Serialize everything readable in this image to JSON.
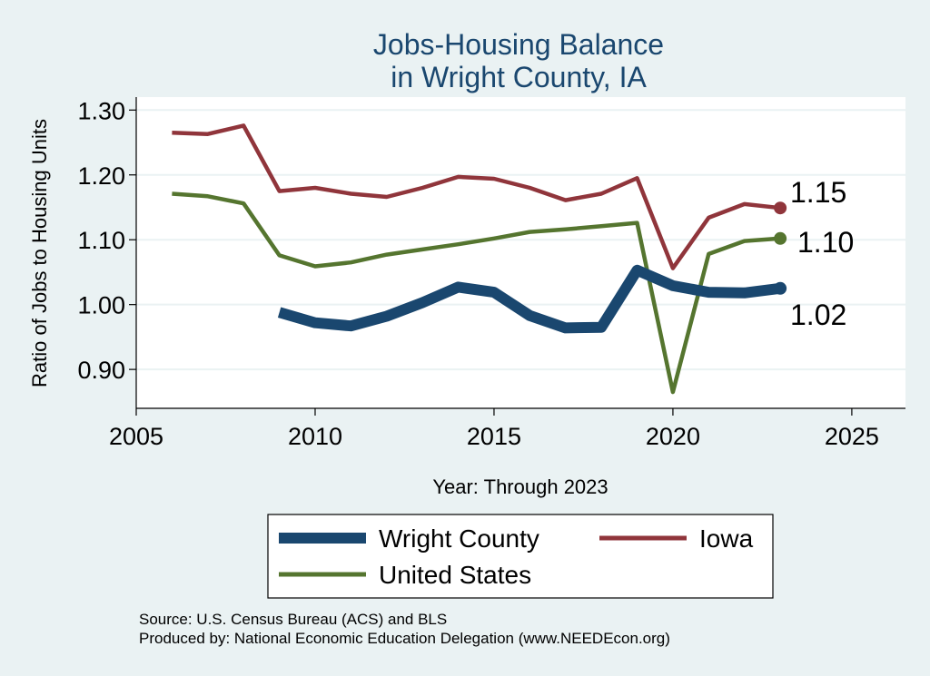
{
  "chart_data": {
    "type": "line",
    "title": "Jobs-Housing Balance",
    "subtitle": "in Wright County, IA",
    "xlabel": "Year: Through 2023",
    "ylabel": "Ratio of Jobs to Housing Units",
    "xlim": [
      2005,
      2026.5
    ],
    "ylim": [
      0.84,
      1.32
    ],
    "xticks": [
      2005,
      2010,
      2015,
      2020,
      2025
    ],
    "yticks": [
      0.9,
      1.0,
      1.1,
      1.2,
      1.3
    ],
    "ytick_labels": [
      "0.90",
      "1.00",
      "1.10",
      "1.20",
      "1.30"
    ],
    "grid": true,
    "legend_position": "bottom",
    "series": [
      {
        "name": "Wright County",
        "color": "#1a476f",
        "end_label": "1.02",
        "x": [
          2009,
          2010,
          2011,
          2012,
          2013,
          2014,
          2015,
          2016,
          2017,
          2018,
          2019,
          2020,
          2021,
          2022,
          2023
        ],
        "values": [
          0.988,
          0.972,
          0.967,
          0.982,
          1.003,
          1.027,
          1.019,
          0.983,
          0.964,
          0.965,
          1.053,
          1.029,
          1.019,
          1.018,
          1.025
        ]
      },
      {
        "name": "Iowa",
        "color": "#90353b",
        "end_label": "1.15",
        "x": [
          2006,
          2007,
          2008,
          2009,
          2010,
          2011,
          2012,
          2013,
          2014,
          2015,
          2016,
          2017,
          2018,
          2019,
          2020,
          2021,
          2022,
          2023
        ],
        "values": [
          1.265,
          1.263,
          1.276,
          1.175,
          1.18,
          1.171,
          1.166,
          1.18,
          1.197,
          1.194,
          1.18,
          1.161,
          1.171,
          1.195,
          1.056,
          1.134,
          1.155,
          1.149
        ]
      },
      {
        "name": "United States",
        "color": "#55752f",
        "end_label": "1.10",
        "x": [
          2006,
          2007,
          2008,
          2009,
          2010,
          2011,
          2012,
          2013,
          2014,
          2015,
          2016,
          2017,
          2018,
          2019,
          2020,
          2021,
          2022,
          2023
        ],
        "values": [
          1.171,
          1.167,
          1.156,
          1.076,
          1.059,
          1.065,
          1.077,
          1.085,
          1.093,
          1.102,
          1.112,
          1.116,
          1.121,
          1.126,
          0.865,
          1.078,
          1.098,
          1.102
        ]
      }
    ],
    "notes": [
      "Source: U.S. Census Bureau (ACS) and BLS",
      "Produced by: National Economic Education Delegation (www.NEEDEcon.org)"
    ]
  }
}
